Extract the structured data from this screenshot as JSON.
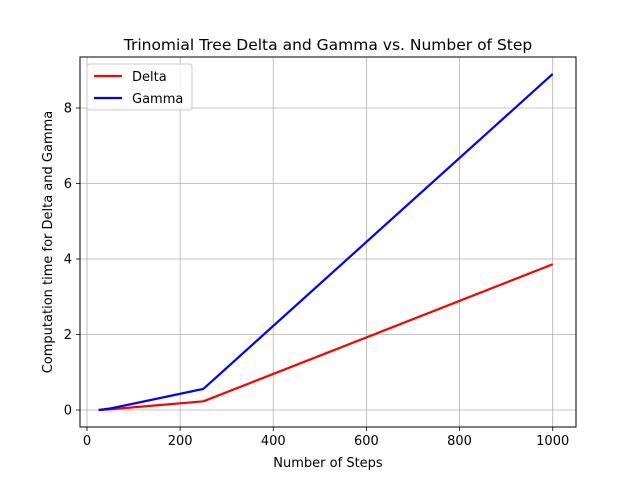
{
  "chart_data": {
    "type": "line",
    "title": "Trinomial Tree Delta and Gamma vs. Number of Step",
    "xlabel": "Number of Steps",
    "ylabel": "Computation time for Delta and Gamma",
    "xlim": [
      -15,
      1050
    ],
    "ylim": [
      -0.45,
      9.35
    ],
    "xticks": [
      0,
      200,
      400,
      600,
      800,
      1000
    ],
    "yticks": [
      0,
      2,
      4,
      6,
      8
    ],
    "grid": true,
    "legend_position": "top-left",
    "series": [
      {
        "name": "Delta",
        "color": "#ff0000",
        "x": [
          25,
          50,
          250,
          1000
        ],
        "y": [
          0.0,
          0.02,
          0.23,
          3.86
        ]
      },
      {
        "name": "Gamma",
        "color": "#0000ff",
        "x": [
          25,
          50,
          250,
          1000
        ],
        "y": [
          0.0,
          0.04,
          0.56,
          8.9
        ]
      }
    ]
  }
}
